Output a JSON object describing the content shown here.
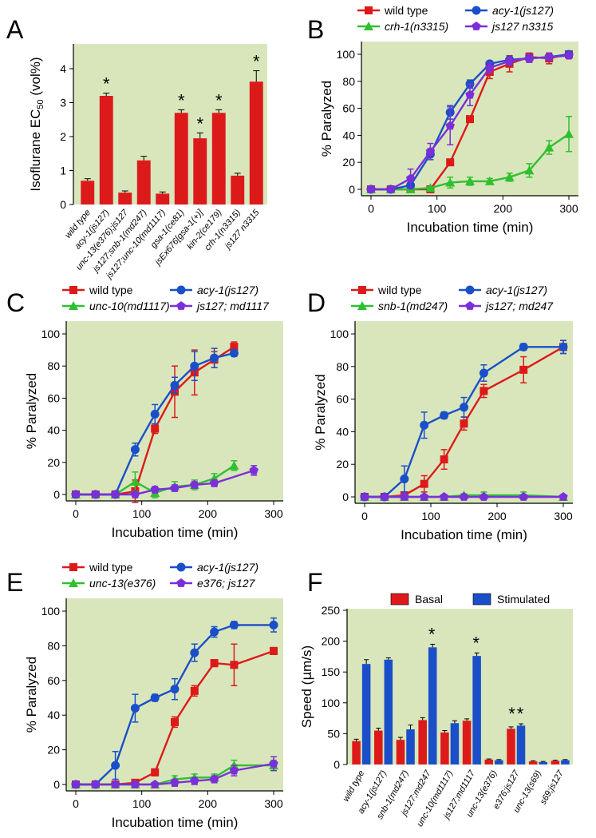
{
  "chart_data": [
    {
      "panel": "A",
      "type": "bar",
      "ylabel_main": "Isoflurane EC",
      "ylabel_sub": "50",
      "ylabel_unit": " (vol%)",
      "ylim": [
        0,
        4.4
      ],
      "yticks": [
        0,
        1,
        2,
        3,
        4
      ],
      "categories": [
        "wild type",
        "acy-1(js127)",
        "unc-13(e376);js127",
        "js127;snb-1(md247)",
        "js127;unc-10(md1117)",
        "gsa-1(ce81)",
        "jsEx676[gsa-1(+)]",
        "kin-2(ce179)",
        "crh-1(n3315)",
        "js127 n3315"
      ],
      "values": [
        0.7,
        3.2,
        0.35,
        1.3,
        0.32,
        2.7,
        1.95,
        2.7,
        0.85,
        3.62
      ],
      "errors": [
        0.06,
        0.08,
        0.05,
        0.12,
        0.05,
        0.09,
        0.16,
        0.09,
        0.07,
        0.32
      ],
      "significant": [
        false,
        true,
        false,
        false,
        false,
        true,
        true,
        true,
        false,
        true
      ],
      "sig_mark": "*",
      "color": "#dd1a1a",
      "background": "#d9e6bc"
    },
    {
      "panel": "B",
      "type": "line",
      "xlabel": "Incubation time (min)",
      "ylabel": "% Paralyzed",
      "xlim": [
        0,
        300
      ],
      "ylim": [
        0,
        100
      ],
      "xticks": [
        0,
        100,
        200,
        300
      ],
      "yticks": [
        0,
        20,
        40,
        60,
        80,
        100
      ],
      "series": [
        {
          "name": "wild type",
          "color": "#dd1a1a",
          "marker": "square",
          "x": [
            0,
            30,
            60,
            90,
            120,
            150,
            180,
            210,
            240,
            270,
            300
          ],
          "y": [
            0,
            0,
            0,
            0,
            20,
            52,
            87,
            93,
            98,
            97,
            100
          ],
          "err": [
            0,
            0,
            0,
            0,
            2,
            2,
            5,
            6,
            3,
            4,
            1
          ]
        },
        {
          "name": "crh-1(n3315)",
          "color": "#2fc02f",
          "marker": "triangle",
          "x": [
            0,
            30,
            60,
            90,
            120,
            150,
            180,
            210,
            240,
            270,
            300
          ],
          "y": [
            0,
            0,
            0,
            1,
            5,
            6,
            6,
            9,
            14,
            31,
            41
          ],
          "err": [
            0,
            0,
            0,
            1,
            4,
            3,
            2,
            3,
            5,
            5,
            13
          ]
        },
        {
          "name": "acy-1(js127)",
          "color": "#1a4fc9",
          "marker": "circle",
          "x": [
            0,
            30,
            60,
            90,
            120,
            150,
            180,
            210,
            240,
            270,
            300
          ],
          "y": [
            0,
            0,
            3,
            26,
            57,
            78,
            93,
            96,
            97,
            98,
            100
          ],
          "err": [
            0,
            0,
            2,
            4,
            5,
            3,
            2,
            2,
            2,
            2,
            1
          ]
        },
        {
          "name": "js127 n3315",
          "color": "#7b2fd9",
          "marker": "pentagon",
          "x": [
            0,
            30,
            60,
            90,
            120,
            150,
            180,
            210,
            240,
            270,
            300
          ],
          "y": [
            0,
            0,
            8,
            28,
            47,
            70,
            90,
            95,
            97,
            98,
            99
          ],
          "err": [
            0,
            0,
            7,
            6,
            14,
            8,
            4,
            3,
            3,
            2,
            1
          ]
        }
      ],
      "background": "#d9e6bc"
    },
    {
      "panel": "C",
      "type": "line",
      "xlabel": "Incubation time (min)",
      "ylabel": "% Paralyzed",
      "xlim": [
        0,
        300
      ],
      "ylim": [
        0,
        100
      ],
      "xticks": [
        0,
        100,
        200,
        300
      ],
      "yticks": [
        0,
        20,
        40,
        60,
        80,
        100
      ],
      "series": [
        {
          "name": "wild type",
          "color": "#dd1a1a",
          "marker": "square",
          "x": [
            0,
            30,
            60,
            90,
            120,
            150,
            180,
            210,
            240
          ],
          "y": [
            0,
            0,
            0,
            2,
            41,
            64,
            76,
            84,
            92
          ],
          "err": [
            0,
            0,
            0,
            7,
            3,
            16,
            14,
            5,
            3
          ]
        },
        {
          "name": "unc-10(md1117)",
          "color": "#2fc02f",
          "marker": "triangle",
          "x": [
            0,
            30,
            60,
            90,
            120,
            150,
            180,
            210,
            240
          ],
          "y": [
            0,
            0,
            0,
            8,
            1,
            5,
            6,
            10,
            18
          ],
          "err": [
            0,
            0,
            0,
            6,
            3,
            3,
            3,
            3,
            3
          ]
        },
        {
          "name": "acy-1(js127)",
          "color": "#1a4fc9",
          "marker": "circle",
          "x": [
            0,
            30,
            60,
            90,
            120,
            150,
            180,
            210,
            240
          ],
          "y": [
            0,
            0,
            0,
            28,
            50,
            68,
            80,
            85,
            88
          ],
          "err": [
            0,
            0,
            0,
            4,
            6,
            5,
            9,
            6,
            2
          ]
        },
        {
          "name": "js127; md1117",
          "color": "#7b2fd9",
          "marker": "pentagon",
          "x": [
            0,
            30,
            60,
            90,
            120,
            150,
            180,
            210,
            270
          ],
          "y": [
            0,
            0,
            0,
            0,
            3,
            4,
            6,
            7,
            15
          ],
          "err": [
            0,
            0,
            0,
            1,
            2,
            2,
            2,
            2,
            3
          ]
        }
      ],
      "background": "#d9e6bc"
    },
    {
      "panel": "D",
      "type": "line",
      "xlabel": "Incubation time (min)",
      "ylabel": "% Paralyzed",
      "xlim": [
        0,
        300
      ],
      "ylim": [
        0,
        100
      ],
      "xticks": [
        0,
        100,
        200,
        300
      ],
      "yticks": [
        0,
        20,
        40,
        60,
        80,
        100
      ],
      "series": [
        {
          "name": "wild type",
          "color": "#dd1a1a",
          "marker": "square",
          "x": [
            0,
            30,
            60,
            90,
            120,
            150,
            180,
            240,
            300
          ],
          "y": [
            0,
            0,
            1,
            8,
            23,
            45,
            65,
            78,
            92
          ],
          "err": [
            0,
            0,
            1,
            5,
            6,
            4,
            4,
            8,
            4
          ]
        },
        {
          "name": "snb-1(md247)",
          "color": "#2fc02f",
          "marker": "triangle",
          "x": [
            0,
            30,
            60,
            90,
            120,
            150,
            180,
            240,
            300
          ],
          "y": [
            0,
            0,
            0,
            0,
            0,
            1,
            1,
            1,
            0
          ],
          "err": [
            0,
            0,
            0,
            1,
            1,
            1,
            2,
            2,
            1
          ]
        },
        {
          "name": "acy-1(js127)",
          "color": "#1a4fc9",
          "marker": "circle",
          "x": [
            0,
            30,
            60,
            90,
            120,
            150,
            180,
            240,
            300
          ],
          "y": [
            0,
            0,
            11,
            44,
            50,
            55,
            76,
            92,
            92
          ],
          "err": [
            0,
            0,
            8,
            8,
            2,
            6,
            5,
            2,
            4
          ]
        },
        {
          "name": "js127; md247",
          "color": "#7b2fd9",
          "marker": "pentagon",
          "x": [
            0,
            30,
            60,
            90,
            120,
            150,
            180,
            240,
            300
          ],
          "y": [
            0,
            0,
            0,
            0,
            0,
            0,
            0,
            0,
            0
          ],
          "err": [
            0,
            0,
            0,
            0,
            0,
            0,
            0,
            0,
            0
          ]
        }
      ],
      "background": "#d9e6bc"
    },
    {
      "panel": "E",
      "type": "line",
      "xlabel": "Incubation time (min)",
      "ylabel": "% Paralyzed",
      "xlim": [
        0,
        300
      ],
      "ylim": [
        0,
        100
      ],
      "xticks": [
        0,
        100,
        200,
        300
      ],
      "yticks": [
        0,
        20,
        40,
        60,
        80,
        100
      ],
      "series": [
        {
          "name": "wild type",
          "color": "#dd1a1a",
          "marker": "square",
          "x": [
            0,
            30,
            60,
            90,
            120,
            150,
            180,
            210,
            240,
            300
          ],
          "y": [
            0,
            0,
            0,
            1,
            7,
            36,
            54,
            70,
            69,
            77
          ],
          "err": [
            0,
            0,
            0,
            1,
            2,
            3,
            3,
            2,
            12,
            2
          ]
        },
        {
          "name": "unc-13(e376)",
          "color": "#2fc02f",
          "marker": "triangle",
          "x": [
            0,
            30,
            60,
            90,
            120,
            150,
            180,
            210,
            240,
            300
          ],
          "y": [
            0,
            0,
            0,
            0,
            0,
            3,
            4,
            4,
            11,
            11
          ],
          "err": [
            0,
            0,
            0,
            0,
            1,
            2,
            2,
            2,
            3,
            3
          ]
        },
        {
          "name": "acy-1(js127)",
          "color": "#1a4fc9",
          "marker": "circle",
          "x": [
            0,
            30,
            60,
            90,
            120,
            150,
            180,
            210,
            240,
            300
          ],
          "y": [
            0,
            0,
            11,
            44,
            50,
            55,
            76,
            88,
            92,
            92
          ],
          "err": [
            0,
            0,
            8,
            8,
            2,
            6,
            5,
            3,
            2,
            4
          ]
        },
        {
          "name": "e376; js127",
          "color": "#7b2fd9",
          "marker": "pentagon",
          "x": [
            0,
            30,
            60,
            90,
            120,
            150,
            180,
            210,
            240,
            300
          ],
          "y": [
            0,
            0,
            0,
            0,
            0,
            1,
            2,
            3,
            8,
            12
          ],
          "err": [
            0,
            0,
            0,
            0,
            1,
            2,
            2,
            2,
            3,
            4
          ]
        }
      ],
      "background": "#d9e6bc"
    },
    {
      "panel": "F",
      "type": "bar",
      "ylabel_main": "Speed (",
      "ylabel_mu": "μ",
      "ylabel_unit": "m/s)",
      "ylim": [
        0,
        250
      ],
      "yticks": [
        0,
        50,
        100,
        150,
        200,
        250
      ],
      "categories": [
        "wild type",
        "acy-1(js127)",
        "snb-1(md247)",
        "js127;md247",
        "unc-10(md1117)",
        "js127;md1117",
        "unc-13(e376)",
        "e376;js127",
        "unc-13(s69)",
        "s69;js127"
      ],
      "series": [
        {
          "name": "Basal",
          "color": "#dd1a1a",
          "values": [
            38,
            55,
            40,
            72,
            52,
            71,
            8,
            58,
            5,
            6
          ],
          "errors": [
            3,
            4,
            4,
            4,
            3,
            3,
            1,
            3,
            1,
            1
          ]
        },
        {
          "name": "Stimulated",
          "color": "#1a4fc9",
          "values": [
            163,
            170,
            57,
            190,
            67,
            176,
            7,
            63,
            4,
            7
          ],
          "errors": [
            7,
            3,
            7,
            5,
            4,
            5,
            1,
            3,
            1,
            1
          ]
        }
      ],
      "significant": [
        false,
        false,
        false,
        true,
        false,
        true,
        false,
        true,
        false,
        false
      ],
      "sig_mark": "*",
      "background": "#d9e6bc"
    }
  ]
}
